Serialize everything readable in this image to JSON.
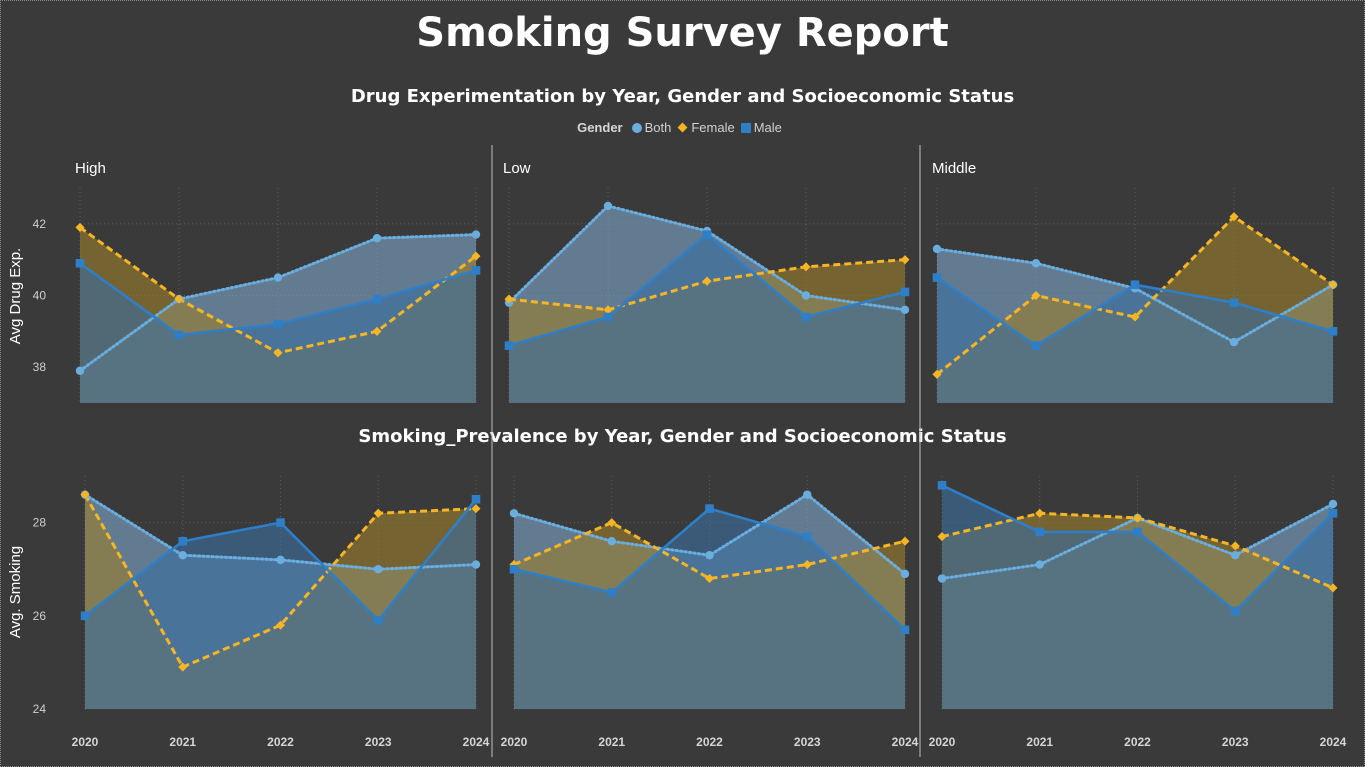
{
  "report": {
    "title": "Smoking Survey Report"
  },
  "legend": {
    "title": "Gender",
    "items": [
      {
        "label": "Both",
        "marker": "circle",
        "color": "#6aaee0"
      },
      {
        "label": "Female",
        "marker": "diamond",
        "color": "#f5b524"
      },
      {
        "label": "Male",
        "marker": "square",
        "color": "#2e7fc8"
      }
    ]
  },
  "colors": {
    "background": "#3a3a3a",
    "Both_line": "#6aaee0",
    "Both_fill": "#7da3c7",
    "Female_line": "#f5b524",
    "Female_fill": "#9a7d2c",
    "Male_line": "#2e7fc8",
    "Male_fill": "#3c6e9e"
  },
  "chart_data": [
    {
      "type": "area",
      "title": "Drug Experimentation by Year, Gender and Socioeconomic Status",
      "ylabel": "Avg Drug Exp.",
      "ylim": [
        37,
        43
      ],
      "yticks": [
        38,
        40,
        42
      ],
      "x": [
        "2020",
        "2021",
        "2022",
        "2023",
        "2024"
      ],
      "grid": true,
      "facets": [
        {
          "name": "High",
          "series": [
            {
              "name": "Both",
              "values": [
                37.9,
                39.9,
                40.5,
                41.6,
                41.7
              ]
            },
            {
              "name": "Female",
              "values": [
                41.9,
                39.9,
                38.4,
                39.0,
                41.1
              ]
            },
            {
              "name": "Male",
              "values": [
                40.9,
                38.9,
                39.2,
                39.9,
                40.7
              ]
            }
          ]
        },
        {
          "name": "Low",
          "series": [
            {
              "name": "Both",
              "values": [
                39.8,
                42.5,
                41.8,
                40.0,
                39.6
              ]
            },
            {
              "name": "Female",
              "values": [
                39.9,
                39.6,
                40.4,
                40.8,
                41.0
              ]
            },
            {
              "name": "Male",
              "values": [
                38.6,
                39.4,
                41.7,
                39.4,
                40.1
              ]
            }
          ]
        },
        {
          "name": "Middle",
          "series": [
            {
              "name": "Both",
              "values": [
                41.3,
                40.9,
                40.2,
                38.7,
                40.3
              ]
            },
            {
              "name": "Female",
              "values": [
                37.8,
                40.0,
                39.4,
                42.2,
                40.3
              ]
            },
            {
              "name": "Male",
              "values": [
                40.5,
                38.6,
                40.3,
                39.8,
                39.0
              ]
            }
          ]
        }
      ]
    },
    {
      "type": "area",
      "title": "Smoking_Prevalence by Year, Gender and Socioeconomic Status",
      "ylabel": "Avg. Smoking",
      "ylim": [
        24,
        29
      ],
      "yticks": [
        24,
        26,
        28
      ],
      "x": [
        "2020",
        "2021",
        "2022",
        "2023",
        "2024"
      ],
      "grid": true,
      "facets": [
        {
          "name": "High",
          "series": [
            {
              "name": "Both",
              "values": [
                28.6,
                27.3,
                27.2,
                27.0,
                27.1
              ]
            },
            {
              "name": "Female",
              "values": [
                28.6,
                24.9,
                25.8,
                28.2,
                28.3
              ]
            },
            {
              "name": "Male",
              "values": [
                26.0,
                27.6,
                28.0,
                25.9,
                28.5
              ]
            }
          ]
        },
        {
          "name": "Low",
          "series": [
            {
              "name": "Both",
              "values": [
                28.2,
                27.6,
                27.3,
                28.6,
                26.9
              ]
            },
            {
              "name": "Female",
              "values": [
                27.1,
                28.0,
                26.8,
                27.1,
                27.6
              ]
            },
            {
              "name": "Male",
              "values": [
                27.0,
                26.5,
                28.3,
                27.7,
                25.7
              ]
            }
          ]
        },
        {
          "name": "Middle",
          "series": [
            {
              "name": "Both",
              "values": [
                26.8,
                27.1,
                28.1,
                27.3,
                28.4
              ]
            },
            {
              "name": "Female",
              "values": [
                27.7,
                28.2,
                28.1,
                27.5,
                26.6
              ]
            },
            {
              "name": "Male",
              "values": [
                28.8,
                27.8,
                27.8,
                26.1,
                28.2
              ]
            }
          ]
        }
      ]
    }
  ]
}
